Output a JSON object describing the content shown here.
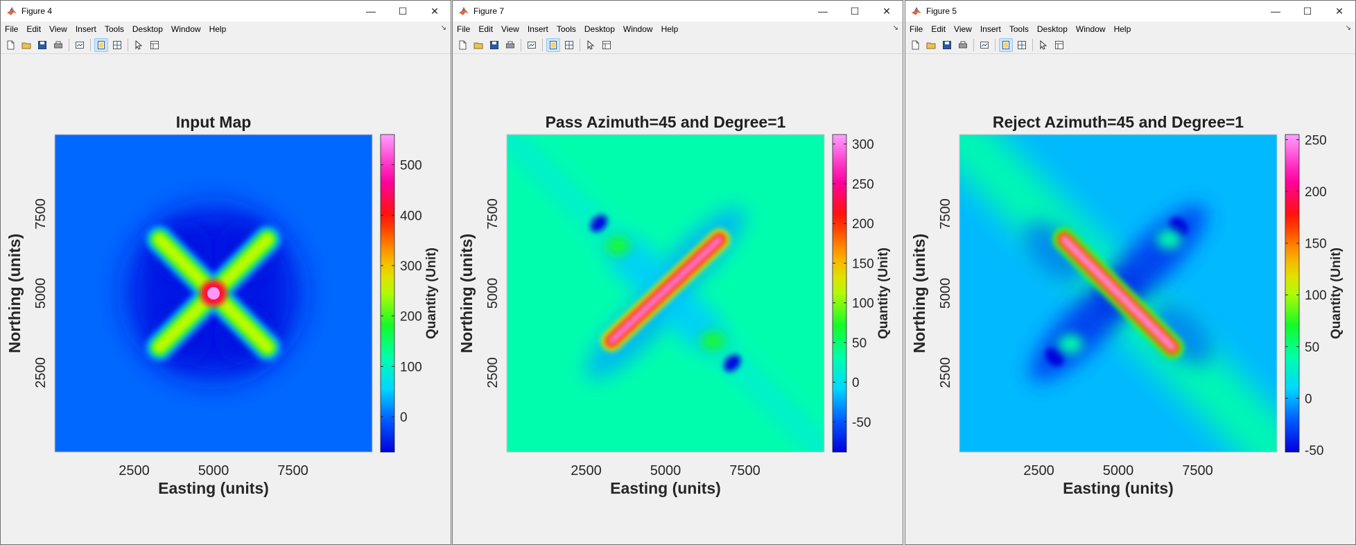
{
  "windows": [
    {
      "title": "Figure 4",
      "plot_title": "Input Map",
      "colorbar_label": "Quantity (Unit)",
      "colorbar_ticks": [
        "0",
        "100",
        "200",
        "300",
        "400",
        "500"
      ],
      "colorbar_tick_values": [
        0,
        100,
        200,
        300,
        400,
        500
      ],
      "colorbar_range": [
        -70,
        560
      ],
      "variant": "input"
    },
    {
      "title": "Figure 7",
      "plot_title": "Pass Azimuth=45 and Degree=1",
      "colorbar_label": "Quantity (Unit)",
      "colorbar_ticks": [
        "-50",
        "0",
        "50",
        "100",
        "150",
        "200",
        "250",
        "300"
      ],
      "colorbar_tick_values": [
        -50,
        0,
        50,
        100,
        150,
        200,
        250,
        300
      ],
      "colorbar_range": [
        -88,
        312
      ],
      "variant": "pass"
    },
    {
      "title": "Figure 5",
      "plot_title": "Reject Azimuth=45 and Degree=1",
      "colorbar_label": "Quantity (Unit)",
      "colorbar_ticks": [
        "-50",
        "0",
        "50",
        "100",
        "150",
        "200",
        "250"
      ],
      "colorbar_tick_values": [
        -50,
        0,
        50,
        100,
        150,
        200,
        250
      ],
      "colorbar_range": [
        -52,
        255
      ],
      "variant": "reject"
    }
  ],
  "menu": [
    "File",
    "Edit",
    "View",
    "Insert",
    "Tools",
    "Desktop",
    "Window",
    "Help"
  ],
  "toolbar_icons": [
    "new-figure-icon",
    "open-file-icon",
    "save-icon",
    "print-icon",
    "link-plot-icon",
    "hide-plot-tools-icon",
    "show-plot-tools-icon",
    "edit-plot-icon",
    "open-property-inspector-icon"
  ],
  "axes": {
    "xlabel": "Easting (units)",
    "ylabel": "Northing (units)",
    "xticks": [
      "2500",
      "5000",
      "7500"
    ],
    "yticks": [
      "2500",
      "5000",
      "7500"
    ],
    "tick_values": [
      2500,
      5000,
      7500
    ],
    "range": [
      0,
      10000
    ]
  },
  "colors": {
    "colormap": "hsv-like",
    "titlebar": "#ffffff",
    "figure_bg": "#f0f0f0"
  }
}
